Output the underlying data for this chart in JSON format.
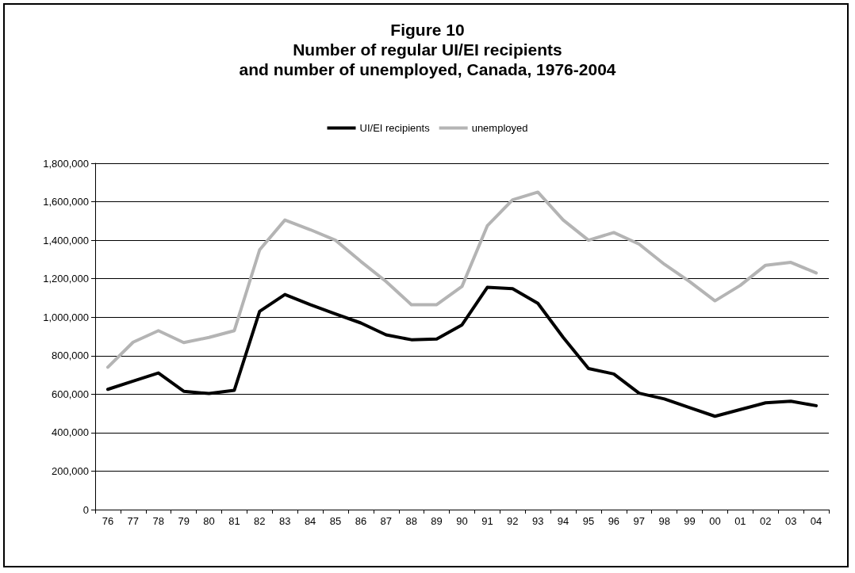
{
  "chart_data": {
    "type": "line",
    "title": "Figure 10\nNumber of regular UI/EI recipients\nand number of unemployed, Canada, 1976-2004",
    "categories": [
      "76",
      "77",
      "78",
      "79",
      "80",
      "81",
      "82",
      "83",
      "84",
      "85",
      "86",
      "87",
      "88",
      "89",
      "90",
      "91",
      "92",
      "93",
      "94",
      "95",
      "96",
      "97",
      "98",
      "99",
      "00",
      "01",
      "02",
      "03",
      "04"
    ],
    "series": [
      {
        "name": "UI/EI recipients",
        "color": "#000000",
        "values": [
          625000,
          668000,
          710000,
          615000,
          603000,
          620000,
          1030000,
          1118000,
          1065000,
          1017000,
          970000,
          908000,
          883000,
          887000,
          960000,
          1155000,
          1148000,
          1072000,
          895000,
          733000,
          705000,
          605000,
          575000,
          530000,
          485000,
          520000,
          555000,
          563000,
          540000
        ]
      },
      {
        "name": "unemployed",
        "color": "#b4b4b4",
        "values": [
          740000,
          870000,
          930000,
          868000,
          895000,
          930000,
          1350000,
          1505000,
          1455000,
          1400000,
          1290000,
          1185000,
          1065000,
          1065000,
          1160000,
          1475000,
          1610000,
          1650000,
          1505000,
          1400000,
          1440000,
          1380000,
          1275000,
          1185000,
          1085000,
          1165000,
          1270000,
          1285000,
          1230000
        ]
      }
    ],
    "ylim": [
      0,
      1800000
    ],
    "yticks": [
      0,
      {
        "value": 200000,
        "label": "200,000"
      },
      {
        "value": 400000,
        "label": "400,000"
      },
      {
        "value": 600000,
        "label": "600,000"
      },
      {
        "value": 800000,
        "label": "800,000"
      },
      {
        "value": 1000000,
        "label": "1,000,000"
      },
      {
        "value": 1200000,
        "label": "1,200,000"
      },
      {
        "value": 1400000,
        "label": "1,400,000"
      },
      {
        "value": 1600000,
        "label": "1,600,000"
      },
      {
        "value": 1800000,
        "label": "1,800,000"
      }
    ],
    "grid": "y",
    "legend": "top",
    "marker": "none",
    "line_style": "solid"
  }
}
